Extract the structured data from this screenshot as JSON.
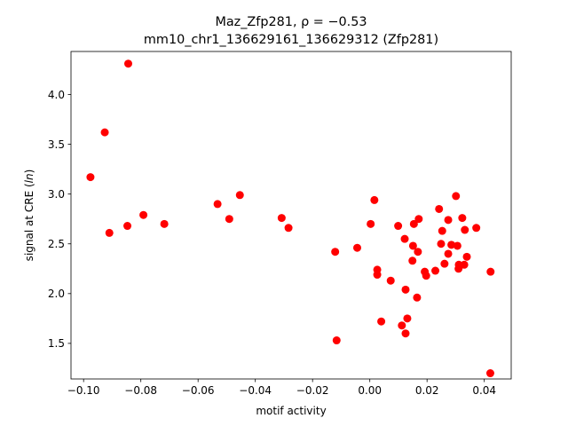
{
  "chart_data": {
    "type": "scatter",
    "title_line1": "Maz_Zfp281, ρ = −0.53",
    "title_line2": "mm10_chr1_136629161_136629312 (Zfp281)",
    "xlabel": "motif activity",
    "ylabel": "signal at CRE (ln)",
    "xlim": [
      -0.1044,
      0.0494
    ],
    "ylim": [
      1.1425,
      4.4325
    ],
    "x_ticks": [
      -0.1,
      -0.08,
      -0.06,
      -0.04,
      -0.02,
      0.0,
      0.02,
      0.04
    ],
    "x_tick_labels": [
      "−0.10",
      "−0.08",
      "−0.06",
      "−0.04",
      "−0.02",
      "0.00",
      "0.02",
      "0.04"
    ],
    "y_ticks": [
      1.5,
      2.0,
      2.5,
      3.0,
      3.5,
      4.0
    ],
    "y_tick_labels": [
      "1.5",
      "2.0",
      "2.5",
      "3.0",
      "3.5",
      "4.0"
    ],
    "grid": false,
    "marker_color": "#ff0000",
    "points": [
      {
        "x": -0.0976,
        "y": 3.17
      },
      {
        "x": -0.0926,
        "y": 3.62
      },
      {
        "x": -0.091,
        "y": 2.61
      },
      {
        "x": -0.0844,
        "y": 4.31
      },
      {
        "x": -0.0847,
        "y": 2.68
      },
      {
        "x": -0.0791,
        "y": 2.79
      },
      {
        "x": -0.0718,
        "y": 2.7
      },
      {
        "x": -0.0532,
        "y": 2.9
      },
      {
        "x": -0.0491,
        "y": 2.75
      },
      {
        "x": -0.0454,
        "y": 2.99
      },
      {
        "x": -0.0308,
        "y": 2.76
      },
      {
        "x": -0.0284,
        "y": 2.66
      },
      {
        "x": -0.0121,
        "y": 2.42
      },
      {
        "x": -0.0116,
        "y": 1.53
      },
      {
        "x": -0.0044,
        "y": 2.46
      },
      {
        "x": 0.0003,
        "y": 2.7
      },
      {
        "x": 0.0016,
        "y": 2.94
      },
      {
        "x": 0.0026,
        "y": 2.24
      },
      {
        "x": 0.0026,
        "y": 2.19
      },
      {
        "x": 0.004,
        "y": 1.72
      },
      {
        "x": 0.0073,
        "y": 2.13
      },
      {
        "x": 0.0099,
        "y": 2.68
      },
      {
        "x": 0.0112,
        "y": 1.68
      },
      {
        "x": 0.0122,
        "y": 2.55
      },
      {
        "x": 0.0125,
        "y": 1.6
      },
      {
        "x": 0.0125,
        "y": 2.04
      },
      {
        "x": 0.0131,
        "y": 1.75
      },
      {
        "x": 0.0149,
        "y": 2.33
      },
      {
        "x": 0.0151,
        "y": 2.48
      },
      {
        "x": 0.0154,
        "y": 2.7
      },
      {
        "x": 0.0165,
        "y": 1.96
      },
      {
        "x": 0.0168,
        "y": 2.42
      },
      {
        "x": 0.0171,
        "y": 2.75
      },
      {
        "x": 0.0192,
        "y": 2.22
      },
      {
        "x": 0.0197,
        "y": 2.18
      },
      {
        "x": 0.0229,
        "y": 2.23
      },
      {
        "x": 0.0242,
        "y": 2.85
      },
      {
        "x": 0.0249,
        "y": 2.5
      },
      {
        "x": 0.0253,
        "y": 2.63
      },
      {
        "x": 0.0261,
        "y": 2.3
      },
      {
        "x": 0.0274,
        "y": 2.74
      },
      {
        "x": 0.0274,
        "y": 2.4
      },
      {
        "x": 0.0285,
        "y": 2.49
      },
      {
        "x": 0.0301,
        "y": 2.98
      },
      {
        "x": 0.0306,
        "y": 2.48
      },
      {
        "x": 0.031,
        "y": 2.25
      },
      {
        "x": 0.0311,
        "y": 2.29
      },
      {
        "x": 0.0323,
        "y": 2.76
      },
      {
        "x": 0.033,
        "y": 2.29
      },
      {
        "x": 0.0332,
        "y": 2.64
      },
      {
        "x": 0.0339,
        "y": 2.37
      },
      {
        "x": 0.0372,
        "y": 2.66
      },
      {
        "x": 0.0422,
        "y": 2.22
      },
      {
        "x": 0.0421,
        "y": 1.2
      }
    ]
  }
}
